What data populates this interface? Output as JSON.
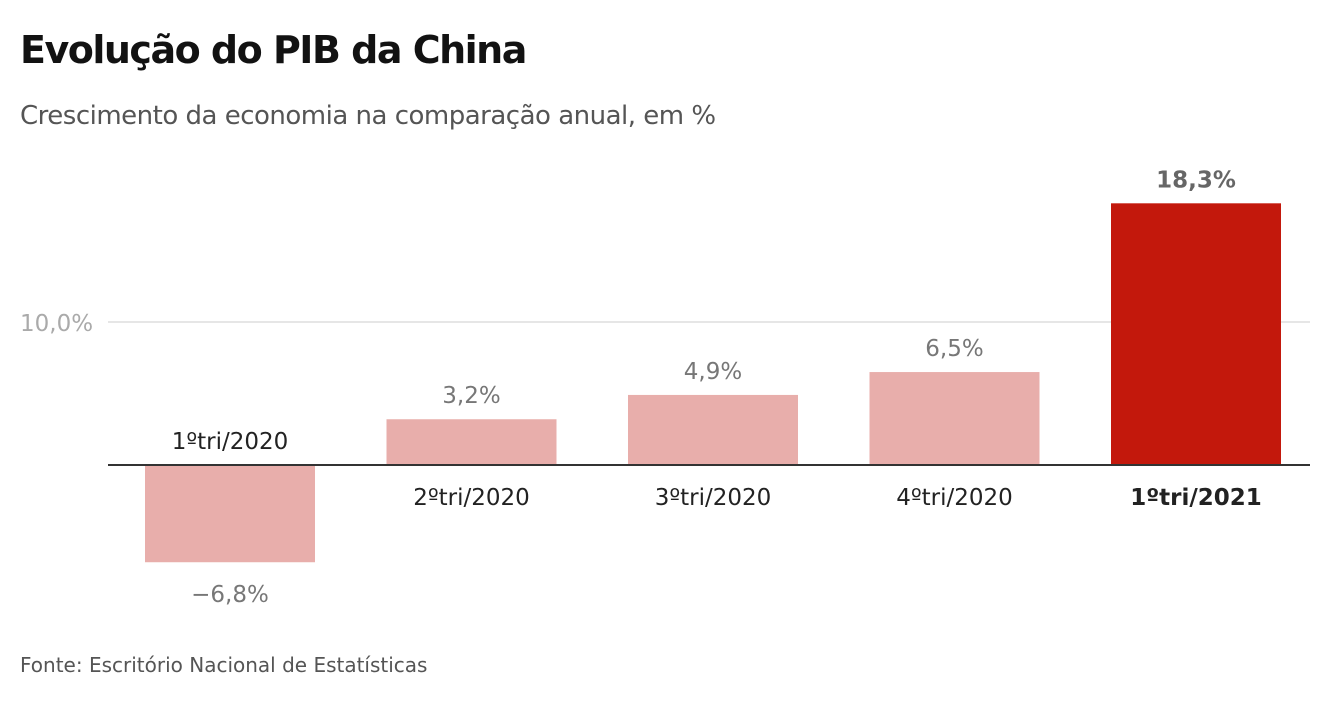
{
  "title": "Evolução do PIB da China",
  "subtitle": "Crescimento da economia na comparação anual, em %",
  "source": "Fonte: Escritório Nacional de Estatísticas",
  "colors": {
    "bar_default": "#e8aeab",
    "bar_highlight": "#c3180c",
    "axis": "#333333",
    "grid": "#dddddd"
  },
  "chart_data": {
    "type": "bar",
    "title": "Evolução do PIB da China",
    "subtitle": "Crescimento da economia na comparação anual, em %",
    "categories": [
      "1ºtri/2020",
      "2ºtri/2020",
      "3ºtri/2020",
      "4ºtri/2020",
      "1ºtri/2021"
    ],
    "values": [
      -6.8,
      3.2,
      4.9,
      6.5,
      18.3
    ],
    "value_labels": [
      "−6,8%",
      "3,2%",
      "4,9%",
      "6,5%",
      "18,3%"
    ],
    "highlight_index": 4,
    "ytick_labels": [
      {
        "value": 10,
        "label": "10,0%"
      }
    ],
    "ylim": [
      -6.8,
      18.3
    ],
    "grid": true,
    "legend": "none",
    "xlabel": "",
    "ylabel": ""
  }
}
